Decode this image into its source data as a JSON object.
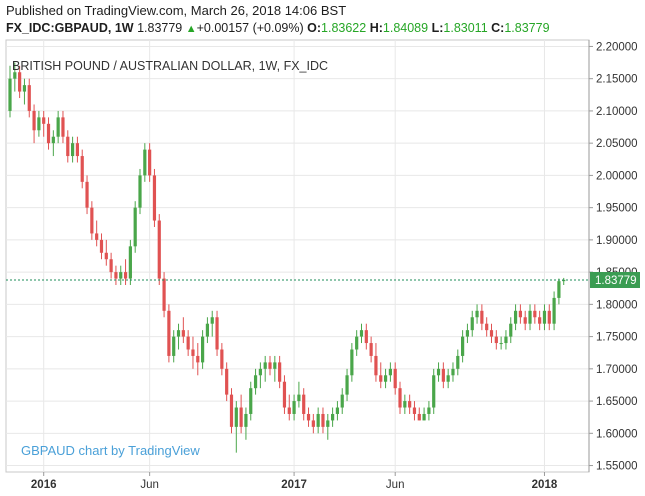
{
  "header": {
    "published": "Published on TradingView.com, March 26, 2018 14:06 BST",
    "symbol": "FX_IDC:GBPAUD,",
    "interval": "1W",
    "last": "1.83779",
    "change_arrow": "▲",
    "change": "+0.00157 (+0.09%)",
    "open_label": "O:",
    "open": "1.83622",
    "high_label": "H:",
    "high": "1.84089",
    "low_label": "L:",
    "low": "1.83011",
    "close_label": "C:",
    "close": "1.83779"
  },
  "colors": {
    "up": "#4aa64a",
    "down": "#e05252",
    "price_line": "#1e8c5a",
    "price_tag": "#3a9c52",
    "watermark": "#4aa0d8",
    "grid": "#e8e8e8"
  },
  "chart_data": {
    "type": "candlestick",
    "title": "BRITISH POUND / AUSTRALIAN DOLLAR, 1W, FX_IDC",
    "watermark": "GBPAUD chart by TradingView",
    "last_price_label": "1.83779",
    "y_ticks": [
      "2.20000",
      "2.15000",
      "2.10000",
      "2.05000",
      "2.00000",
      "1.95000",
      "1.90000",
      "1.85000",
      "1.80000",
      "1.75000",
      "1.70000",
      "1.65000",
      "1.60000",
      "1.55000"
    ],
    "ylim": [
      1.54,
      2.21
    ],
    "x_ticks": [
      {
        "label": "2016",
        "index": 7
      },
      {
        "label": "Jun",
        "index": 29
      },
      {
        "label": "2017",
        "index": 59
      },
      {
        "label": "Jun",
        "index": 80
      },
      {
        "label": "2018",
        "index": 111
      }
    ],
    "candles": [
      {
        "o": 2.1,
        "h": 2.17,
        "l": 2.09,
        "c": 2.15
      },
      {
        "o": 2.15,
        "h": 2.175,
        "l": 2.13,
        "c": 2.16
      },
      {
        "o": 2.16,
        "h": 2.17,
        "l": 2.12,
        "c": 2.13
      },
      {
        "o": 2.13,
        "h": 2.15,
        "l": 2.11,
        "c": 2.14
      },
      {
        "o": 2.14,
        "h": 2.15,
        "l": 2.09,
        "c": 2.1
      },
      {
        "o": 2.1,
        "h": 2.11,
        "l": 2.05,
        "c": 2.07
      },
      {
        "o": 2.07,
        "h": 2.1,
        "l": 2.06,
        "c": 2.09
      },
      {
        "o": 2.09,
        "h": 2.1,
        "l": 2.06,
        "c": 2.08
      },
      {
        "o": 2.08,
        "h": 2.09,
        "l": 2.04,
        "c": 2.05
      },
      {
        "o": 2.05,
        "h": 2.07,
        "l": 2.03,
        "c": 2.06
      },
      {
        "o": 2.06,
        "h": 2.1,
        "l": 2.05,
        "c": 2.09
      },
      {
        "o": 2.09,
        "h": 2.1,
        "l": 2.05,
        "c": 2.06
      },
      {
        "o": 2.06,
        "h": 2.07,
        "l": 2.02,
        "c": 2.03
      },
      {
        "o": 2.03,
        "h": 2.06,
        "l": 2.02,
        "c": 2.05
      },
      {
        "o": 2.05,
        "h": 2.06,
        "l": 2.02,
        "c": 2.03
      },
      {
        "o": 2.03,
        "h": 2.04,
        "l": 1.98,
        "c": 1.99
      },
      {
        "o": 1.99,
        "h": 2.0,
        "l": 1.94,
        "c": 1.95
      },
      {
        "o": 1.95,
        "h": 1.96,
        "l": 1.9,
        "c": 1.91
      },
      {
        "o": 1.91,
        "h": 1.93,
        "l": 1.89,
        "c": 1.9
      },
      {
        "o": 1.9,
        "h": 1.91,
        "l": 1.87,
        "c": 1.88
      },
      {
        "o": 1.88,
        "h": 1.9,
        "l": 1.86,
        "c": 1.87
      },
      {
        "o": 1.87,
        "h": 1.88,
        "l": 1.84,
        "c": 1.85
      },
      {
        "o": 1.85,
        "h": 1.86,
        "l": 1.83,
        "c": 1.84
      },
      {
        "o": 1.84,
        "h": 1.86,
        "l": 1.83,
        "c": 1.85
      },
      {
        "o": 1.85,
        "h": 1.87,
        "l": 1.83,
        "c": 1.84
      },
      {
        "o": 1.84,
        "h": 1.9,
        "l": 1.83,
        "c": 1.89
      },
      {
        "o": 1.89,
        "h": 1.96,
        "l": 1.88,
        "c": 1.95
      },
      {
        "o": 1.95,
        "h": 2.01,
        "l": 1.94,
        "c": 2.0
      },
      {
        "o": 2.0,
        "h": 2.05,
        "l": 1.99,
        "c": 2.04
      },
      {
        "o": 2.04,
        "h": 2.05,
        "l": 1.99,
        "c": 2.0
      },
      {
        "o": 2.0,
        "h": 2.01,
        "l": 1.92,
        "c": 1.93
      },
      {
        "o": 1.93,
        "h": 1.94,
        "l": 1.83,
        "c": 1.84
      },
      {
        "o": 1.84,
        "h": 1.85,
        "l": 1.78,
        "c": 1.79
      },
      {
        "o": 1.79,
        "h": 1.8,
        "l": 1.71,
        "c": 1.72
      },
      {
        "o": 1.72,
        "h": 1.76,
        "l": 1.71,
        "c": 1.75
      },
      {
        "o": 1.75,
        "h": 1.77,
        "l": 1.73,
        "c": 1.76
      },
      {
        "o": 1.76,
        "h": 1.78,
        "l": 1.74,
        "c": 1.75
      },
      {
        "o": 1.75,
        "h": 1.76,
        "l": 1.72,
        "c": 1.73
      },
      {
        "o": 1.73,
        "h": 1.75,
        "l": 1.7,
        "c": 1.72
      },
      {
        "o": 1.72,
        "h": 1.74,
        "l": 1.69,
        "c": 1.71
      },
      {
        "o": 1.71,
        "h": 1.76,
        "l": 1.7,
        "c": 1.75
      },
      {
        "o": 1.75,
        "h": 1.78,
        "l": 1.74,
        "c": 1.77
      },
      {
        "o": 1.77,
        "h": 1.79,
        "l": 1.75,
        "c": 1.78
      },
      {
        "o": 1.78,
        "h": 1.79,
        "l": 1.72,
        "c": 1.73
      },
      {
        "o": 1.73,
        "h": 1.74,
        "l": 1.69,
        "c": 1.7
      },
      {
        "o": 1.7,
        "h": 1.71,
        "l": 1.65,
        "c": 1.66
      },
      {
        "o": 1.66,
        "h": 1.67,
        "l": 1.6,
        "c": 1.61
      },
      {
        "o": 1.61,
        "h": 1.65,
        "l": 1.57,
        "c": 1.64
      },
      {
        "o": 1.64,
        "h": 1.66,
        "l": 1.6,
        "c": 1.61
      },
      {
        "o": 1.61,
        "h": 1.64,
        "l": 1.59,
        "c": 1.63
      },
      {
        "o": 1.63,
        "h": 1.68,
        "l": 1.62,
        "c": 1.67
      },
      {
        "o": 1.67,
        "h": 1.7,
        "l": 1.66,
        "c": 1.69
      },
      {
        "o": 1.69,
        "h": 1.71,
        "l": 1.67,
        "c": 1.7
      },
      {
        "o": 1.7,
        "h": 1.72,
        "l": 1.68,
        "c": 1.71
      },
      {
        "o": 1.71,
        "h": 1.72,
        "l": 1.69,
        "c": 1.7
      },
      {
        "o": 1.7,
        "h": 1.72,
        "l": 1.68,
        "c": 1.71
      },
      {
        "o": 1.71,
        "h": 1.72,
        "l": 1.67,
        "c": 1.68
      },
      {
        "o": 1.68,
        "h": 1.69,
        "l": 1.63,
        "c": 1.64
      },
      {
        "o": 1.64,
        "h": 1.66,
        "l": 1.62,
        "c": 1.63
      },
      {
        "o": 1.63,
        "h": 1.66,
        "l": 1.62,
        "c": 1.65
      },
      {
        "o": 1.65,
        "h": 1.68,
        "l": 1.64,
        "c": 1.66
      },
      {
        "o": 1.66,
        "h": 1.67,
        "l": 1.62,
        "c": 1.63
      },
      {
        "o": 1.63,
        "h": 1.64,
        "l": 1.61,
        "c": 1.62
      },
      {
        "o": 1.62,
        "h": 1.63,
        "l": 1.6,
        "c": 1.61
      },
      {
        "o": 1.61,
        "h": 1.64,
        "l": 1.6,
        "c": 1.63
      },
      {
        "o": 1.63,
        "h": 1.64,
        "l": 1.6,
        "c": 1.61
      },
      {
        "o": 1.61,
        "h": 1.63,
        "l": 1.59,
        "c": 1.62
      },
      {
        "o": 1.62,
        "h": 1.64,
        "l": 1.61,
        "c": 1.63
      },
      {
        "o": 1.63,
        "h": 1.65,
        "l": 1.62,
        "c": 1.64
      },
      {
        "o": 1.64,
        "h": 1.67,
        "l": 1.63,
        "c": 1.66
      },
      {
        "o": 1.66,
        "h": 1.7,
        "l": 1.65,
        "c": 1.69
      },
      {
        "o": 1.69,
        "h": 1.74,
        "l": 1.68,
        "c": 1.73
      },
      {
        "o": 1.73,
        "h": 1.76,
        "l": 1.72,
        "c": 1.75
      },
      {
        "o": 1.75,
        "h": 1.77,
        "l": 1.74,
        "c": 1.76
      },
      {
        "o": 1.76,
        "h": 1.77,
        "l": 1.73,
        "c": 1.74
      },
      {
        "o": 1.74,
        "h": 1.75,
        "l": 1.71,
        "c": 1.72
      },
      {
        "o": 1.72,
        "h": 1.74,
        "l": 1.68,
        "c": 1.69
      },
      {
        "o": 1.69,
        "h": 1.71,
        "l": 1.67,
        "c": 1.68
      },
      {
        "o": 1.68,
        "h": 1.7,
        "l": 1.67,
        "c": 1.69
      },
      {
        "o": 1.69,
        "h": 1.71,
        "l": 1.68,
        "c": 1.7
      },
      {
        "o": 1.7,
        "h": 1.71,
        "l": 1.66,
        "c": 1.67
      },
      {
        "o": 1.67,
        "h": 1.68,
        "l": 1.63,
        "c": 1.64
      },
      {
        "o": 1.64,
        "h": 1.66,
        "l": 1.63,
        "c": 1.65
      },
      {
        "o": 1.65,
        "h": 1.66,
        "l": 1.63,
        "c": 1.64
      },
      {
        "o": 1.64,
        "h": 1.65,
        "l": 1.62,
        "c": 1.63
      },
      {
        "o": 1.63,
        "h": 1.64,
        "l": 1.62,
        "c": 1.62
      },
      {
        "o": 1.62,
        "h": 1.64,
        "l": 1.62,
        "c": 1.63
      },
      {
        "o": 1.63,
        "h": 1.65,
        "l": 1.62,
        "c": 1.64
      },
      {
        "o": 1.64,
        "h": 1.7,
        "l": 1.63,
        "c": 1.69
      },
      {
        "o": 1.69,
        "h": 1.71,
        "l": 1.68,
        "c": 1.7
      },
      {
        "o": 1.7,
        "h": 1.71,
        "l": 1.67,
        "c": 1.68
      },
      {
        "o": 1.68,
        "h": 1.7,
        "l": 1.67,
        "c": 1.69
      },
      {
        "o": 1.69,
        "h": 1.71,
        "l": 1.68,
        "c": 1.7
      },
      {
        "o": 1.7,
        "h": 1.73,
        "l": 1.69,
        "c": 1.72
      },
      {
        "o": 1.72,
        "h": 1.76,
        "l": 1.71,
        "c": 1.75
      },
      {
        "o": 1.75,
        "h": 1.77,
        "l": 1.74,
        "c": 1.76
      },
      {
        "o": 1.76,
        "h": 1.79,
        "l": 1.75,
        "c": 1.78
      },
      {
        "o": 1.78,
        "h": 1.8,
        "l": 1.77,
        "c": 1.79
      },
      {
        "o": 1.79,
        "h": 1.8,
        "l": 1.76,
        "c": 1.77
      },
      {
        "o": 1.77,
        "h": 1.78,
        "l": 1.75,
        "c": 1.76
      },
      {
        "o": 1.76,
        "h": 1.77,
        "l": 1.74,
        "c": 1.75
      },
      {
        "o": 1.75,
        "h": 1.76,
        "l": 1.73,
        "c": 1.74
      },
      {
        "o": 1.74,
        "h": 1.75,
        "l": 1.73,
        "c": 1.74
      },
      {
        "o": 1.74,
        "h": 1.76,
        "l": 1.73,
        "c": 1.75
      },
      {
        "o": 1.75,
        "h": 1.78,
        "l": 1.74,
        "c": 1.77
      },
      {
        "o": 1.77,
        "h": 1.8,
        "l": 1.76,
        "c": 1.79
      },
      {
        "o": 1.79,
        "h": 1.8,
        "l": 1.77,
        "c": 1.78
      },
      {
        "o": 1.78,
        "h": 1.79,
        "l": 1.76,
        "c": 1.77
      },
      {
        "o": 1.77,
        "h": 1.8,
        "l": 1.76,
        "c": 1.79
      },
      {
        "o": 1.79,
        "h": 1.8,
        "l": 1.77,
        "c": 1.78
      },
      {
        "o": 1.78,
        "h": 1.79,
        "l": 1.76,
        "c": 1.77
      },
      {
        "o": 1.77,
        "h": 1.8,
        "l": 1.76,
        "c": 1.79
      },
      {
        "o": 1.79,
        "h": 1.8,
        "l": 1.76,
        "c": 1.77
      },
      {
        "o": 1.77,
        "h": 1.82,
        "l": 1.76,
        "c": 1.81
      },
      {
        "o": 1.81,
        "h": 1.84,
        "l": 1.8,
        "c": 1.836
      },
      {
        "o": 1.836,
        "h": 1.841,
        "l": 1.83,
        "c": 1.838
      }
    ]
  }
}
